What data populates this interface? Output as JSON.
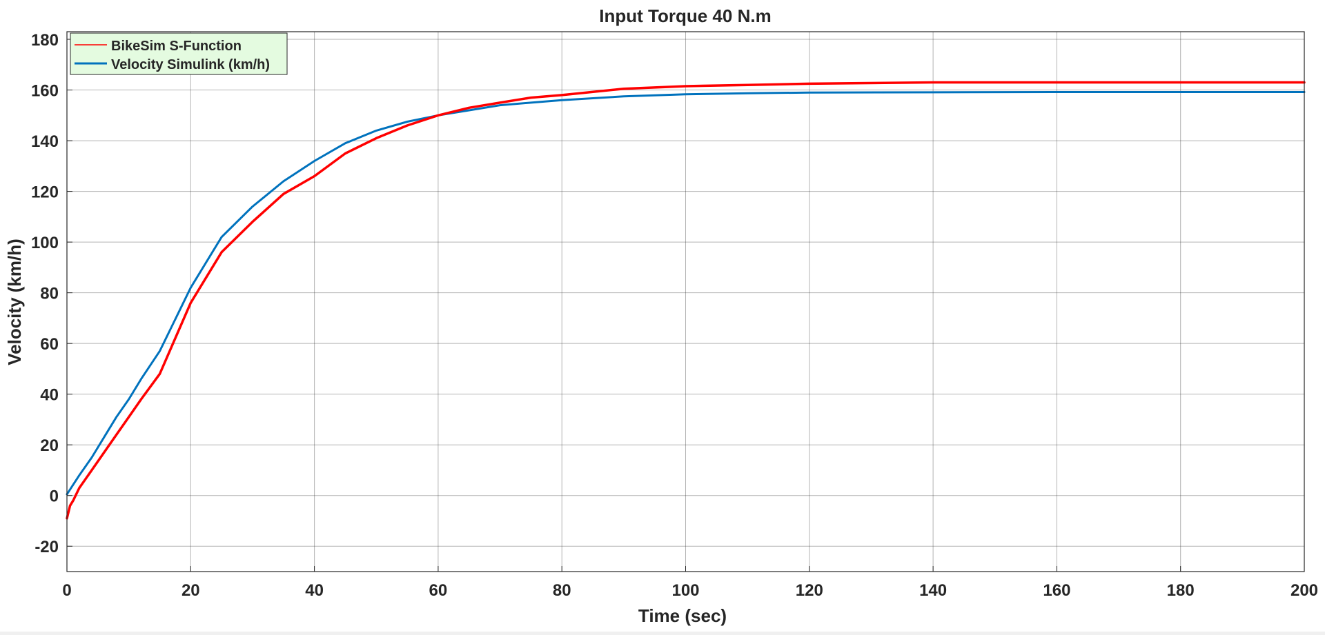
{
  "chart_data": {
    "type": "line",
    "title": "Input Torque 40 N.m",
    "xlabel": "Time (sec)",
    "ylabel": "Velocity (km/h)",
    "xlim": [
      0,
      200
    ],
    "ylim": [
      -30,
      183
    ],
    "xticks": [
      0,
      20,
      40,
      60,
      80,
      100,
      120,
      140,
      160,
      180,
      200
    ],
    "yticks": [
      -20,
      0,
      20,
      40,
      60,
      80,
      100,
      120,
      140,
      160,
      180
    ],
    "grid": true,
    "legend_location": "top-left",
    "series": [
      {
        "name": "BikeSim S-Function",
        "color": "#ff0000",
        "x": [
          0,
          0.5,
          1,
          2,
          4,
          6,
          8,
          10,
          12,
          15,
          20,
          25,
          30,
          35,
          40,
          45,
          50,
          55,
          60,
          65,
          70,
          75,
          80,
          90,
          100,
          110,
          120,
          140,
          160,
          180,
          200
        ],
        "y": [
          -9,
          -4,
          -2,
          3,
          10,
          17,
          24,
          31,
          38,
          48,
          76,
          96,
          108,
          119,
          126,
          135,
          141,
          146,
          150,
          153,
          155,
          157,
          158,
          160.5,
          161.5,
          162,
          162.5,
          163,
          163,
          163,
          163
        ]
      },
      {
        "name": "Velocity Simulink (km/h)",
        "color": "#0072bd",
        "x": [
          0,
          2,
          4,
          6,
          8,
          10,
          12,
          15,
          20,
          25,
          30,
          35,
          40,
          45,
          50,
          55,
          60,
          65,
          70,
          75,
          80,
          90,
          100,
          110,
          120,
          140,
          160,
          180,
          200
        ],
        "y": [
          0.5,
          8,
          15,
          23,
          31,
          38,
          46,
          57,
          82,
          102,
          114,
          124,
          132,
          139,
          144,
          147.5,
          150,
          152,
          154,
          155,
          156,
          157.5,
          158.3,
          158.7,
          159,
          159.1,
          159.2,
          159.2,
          159.2
        ]
      }
    ]
  }
}
